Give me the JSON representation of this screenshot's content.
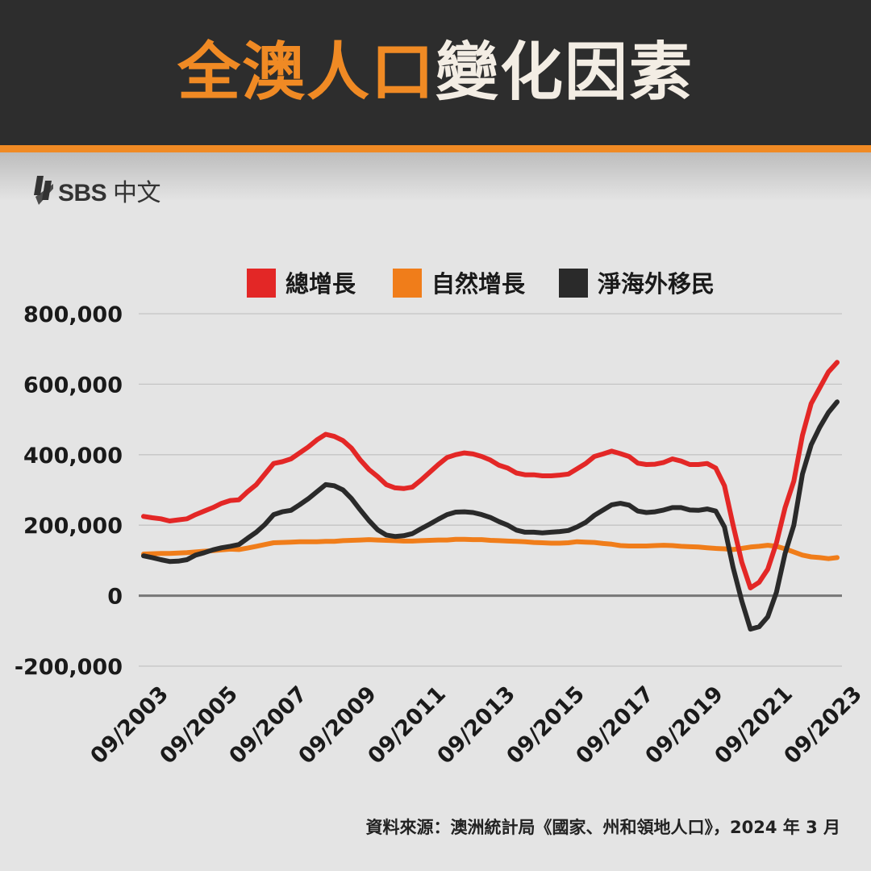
{
  "header": {
    "title_part1": "全澳人口",
    "title_part2": "變化因素",
    "accent_color": "#f08a24"
  },
  "logo": {
    "icon": "sbs-logo-icon",
    "brand": "SBS",
    "suffix": "中文"
  },
  "chart_data": {
    "type": "line",
    "title": "",
    "xlabel": "",
    "ylabel": "",
    "ylim": [
      -200000,
      800000
    ],
    "yticks": [
      800000,
      600000,
      400000,
      200000,
      0,
      -200000
    ],
    "ytick_labels": [
      "800,000",
      "600,000",
      "400,000",
      "200,000",
      "0",
      "-200,000"
    ],
    "x_tick_labels": [
      "09/2003",
      "09/2005",
      "09/2007",
      "09/2009",
      "09/2011",
      "09/2013",
      "09/2015",
      "09/2017",
      "09/2019",
      "09/2021",
      "09/2023"
    ],
    "x": [
      "09/2003",
      "12/2003",
      "03/2004",
      "06/2004",
      "09/2004",
      "12/2004",
      "03/2005",
      "06/2005",
      "09/2005",
      "12/2005",
      "03/2006",
      "06/2006",
      "09/2006",
      "12/2006",
      "03/2007",
      "06/2007",
      "09/2007",
      "12/2007",
      "03/2008",
      "06/2008",
      "09/2008",
      "12/2008",
      "03/2009",
      "06/2009",
      "09/2009",
      "12/2009",
      "03/2010",
      "06/2010",
      "09/2010",
      "12/2010",
      "03/2011",
      "06/2011",
      "09/2011",
      "12/2011",
      "03/2012",
      "06/2012",
      "09/2012",
      "12/2012",
      "03/2013",
      "06/2013",
      "09/2013",
      "12/2013",
      "03/2014",
      "06/2014",
      "09/2014",
      "12/2014",
      "03/2015",
      "06/2015",
      "09/2015",
      "12/2015",
      "03/2016",
      "06/2016",
      "09/2016",
      "12/2016",
      "03/2017",
      "06/2017",
      "09/2017",
      "12/2017",
      "03/2018",
      "06/2018",
      "09/2018",
      "12/2018",
      "03/2019",
      "06/2019",
      "09/2019",
      "12/2019",
      "03/2020",
      "06/2020",
      "09/2020",
      "12/2020",
      "03/2021",
      "06/2021",
      "09/2021",
      "12/2021",
      "03/2022",
      "06/2022",
      "09/2022",
      "12/2022",
      "03/2023",
      "06/2023",
      "09/2023"
    ],
    "series": [
      {
        "name": "總增長",
        "color": "#e32726",
        "values": [
          225000,
          221000,
          218000,
          212000,
          215000,
          218000,
          230000,
          240000,
          250000,
          262000,
          270000,
          272000,
          295000,
          315000,
          345000,
          375000,
          380000,
          388000,
          405000,
          422000,
          442000,
          458000,
          452000,
          440000,
          418000,
          385000,
          358000,
          338000,
          315000,
          306000,
          304000,
          308000,
          328000,
          350000,
          372000,
          392000,
          400000,
          405000,
          402000,
          395000,
          385000,
          370000,
          362000,
          348000,
          343000,
          343000,
          340000,
          340000,
          342000,
          345000,
          360000,
          375000,
          395000,
          402000,
          410000,
          403000,
          395000,
          376000,
          372000,
          373000,
          378000,
          388000,
          382000,
          372000,
          372000,
          375000,
          362000,
          312000,
          200000,
          95000,
          22000,
          38000,
          75000,
          150000,
          250000,
          325000,
          455000,
          545000,
          590000,
          635000,
          662000
        ]
      },
      {
        "name": "自然增長",
        "color": "#f07d1a",
        "values": [
          118000,
          119000,
          120000,
          120000,
          121000,
          122000,
          124000,
          126000,
          128000,
          130000,
          132000,
          131000,
          135000,
          140000,
          145000,
          150000,
          151000,
          152000,
          153000,
          153000,
          153000,
          154000,
          154000,
          156000,
          157000,
          158000,
          159000,
          158000,
          157000,
          156000,
          155000,
          155000,
          156000,
          157000,
          158000,
          158000,
          160000,
          160000,
          159000,
          159000,
          157000,
          156000,
          155000,
          154000,
          153000,
          151000,
          150000,
          149000,
          149000,
          150000,
          153000,
          152000,
          151000,
          148000,
          146000,
          142000,
          141000,
          141000,
          141000,
          142000,
          143000,
          142000,
          140000,
          139000,
          138000,
          136000,
          134000,
          133000,
          131000,
          134000,
          138000,
          140000,
          143000,
          140000,
          133000,
          124000,
          115000,
          110000,
          108000,
          105000,
          108000
        ]
      },
      {
        "name": "淨海外移民",
        "color": "#2a2a2a",
        "values": [
          113000,
          108000,
          102000,
          97000,
          98000,
          102000,
          115000,
          122000,
          130000,
          136000,
          140000,
          145000,
          163000,
          180000,
          202000,
          230000,
          238000,
          242000,
          258000,
          275000,
          295000,
          315000,
          312000,
          300000,
          275000,
          243000,
          213000,
          187000,
          172000,
          168000,
          170000,
          176000,
          190000,
          203000,
          217000,
          230000,
          237000,
          238000,
          236000,
          230000,
          222000,
          210000,
          200000,
          186000,
          180000,
          180000,
          178000,
          180000,
          182000,
          185000,
          195000,
          208000,
          228000,
          243000,
          258000,
          262000,
          257000,
          240000,
          236000,
          238000,
          243000,
          250000,
          250000,
          243000,
          242000,
          246000,
          240000,
          195000,
          80000,
          -15000,
          -95000,
          -88000,
          -60000,
          10000,
          120000,
          200000,
          345000,
          428000,
          478000,
          520000,
          550000
        ]
      }
    ],
    "legend_position": "top-center",
    "grid": "horizontal"
  },
  "source": "資料來源：澳洲統計局《國家、州和領地人口》，2024 年 3 月"
}
